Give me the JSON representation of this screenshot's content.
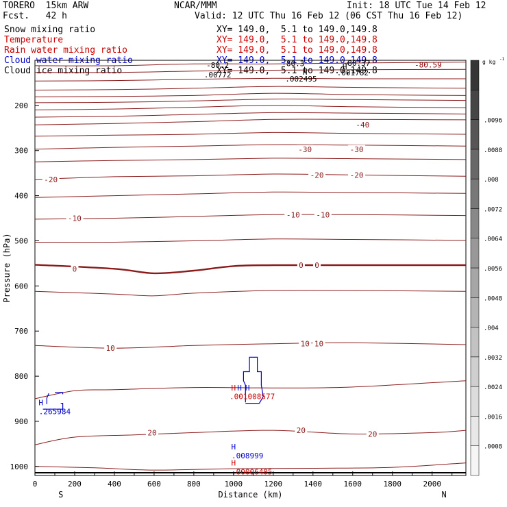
{
  "header": {
    "model": "TORERO  15km ARW",
    "org": "NCAR/MMM",
    "init": "Init: 18 UTC Tue 14 Feb 12",
    "fcst": "Fcst.   42 h",
    "valid": "Valid: 12 UTC Thu 16 Feb 12 (06 CST Thu 16 Feb 12)"
  },
  "legend": [
    {
      "label": "Snow mixing ratio",
      "xy": "XY= 149.0,  5.1 to 149.0,149.8",
      "color": "#000000"
    },
    {
      "label": "Temperature",
      "xy": "XY= 149.0,  5.1 to 149.0,149.8",
      "color": "#cc0000"
    },
    {
      "label": "Rain water mixing ratio",
      "xy": "XY= 149.0,  5.1 to 149.0,149.8",
      "color": "#cc0000"
    },
    {
      "label": "Cloud water mixing ratio",
      "xy": "XY= 149.0,  5.1 to 149.0,149.8",
      "color": "#0000cc"
    },
    {
      "label": "Cloud ice mixing ratio",
      "xy": "XY= 149.0,  5.1 to 149.0,149.8",
      "color": "#000000"
    }
  ],
  "chart_data": {
    "type": "contour-cross-section",
    "xlabel": "Distance (km)",
    "ylabel": "Pressure (hPa)",
    "xlim": [
      0,
      2170
    ],
    "ylim": [
      100,
      1020
    ],
    "x_ticks": [
      0,
      200,
      400,
      600,
      800,
      1000,
      1200,
      1400,
      1600,
      1800,
      2000
    ],
    "y_ticks": [
      200,
      300,
      400,
      500,
      600,
      700,
      800,
      900,
      1000
    ],
    "left_end": "S",
    "right_end": "N",
    "temperature_contours": [
      {
        "value": -80,
        "points": [
          [
            0,
            112
          ],
          [
            400,
            112
          ],
          [
            800,
            108
          ],
          [
            1200,
            108
          ],
          [
            1600,
            106
          ],
          [
            2170,
            104
          ]
        ]
      },
      {
        "value": -75,
        "points": [
          [
            0,
            127
          ],
          [
            400,
            127
          ],
          [
            800,
            124
          ],
          [
            1200,
            122
          ],
          [
            1600,
            121
          ],
          [
            2170,
            120
          ]
        ]
      },
      {
        "value": -70,
        "points": [
          [
            0,
            146
          ],
          [
            400,
            145
          ],
          [
            800,
            142
          ],
          [
            1200,
            140
          ],
          [
            1600,
            141
          ],
          [
            2170,
            141
          ]
        ]
      },
      {
        "value": -65,
        "points": [
          [
            0,
            166
          ],
          [
            400,
            165
          ],
          [
            800,
            162
          ],
          [
            1200,
            158
          ],
          [
            1600,
            160
          ],
          [
            2170,
            162
          ]
        ]
      },
      {
        "value": -60,
        "points": [
          [
            0,
            181
          ],
          [
            400,
            180
          ],
          [
            800,
            178
          ],
          [
            1200,
            173
          ],
          [
            1600,
            176
          ],
          [
            2170,
            178
          ]
        ]
      },
      {
        "value": -55,
        "points": [
          [
            0,
            194
          ],
          [
            400,
            193
          ],
          [
            800,
            190
          ],
          [
            1200,
            186
          ],
          [
            1600,
            187
          ],
          [
            2170,
            189
          ]
        ]
      },
      {
        "value": -50,
        "points": [
          [
            0,
            210
          ],
          [
            400,
            208
          ],
          [
            800,
            204
          ],
          [
            1200,
            200
          ],
          [
            1600,
            203
          ],
          [
            2170,
            205
          ]
        ]
      },
      {
        "value": -45,
        "points": [
          [
            0,
            226
          ],
          [
            400,
            224
          ],
          [
            800,
            220
          ],
          [
            1200,
            216
          ],
          [
            1600,
            217
          ],
          [
            2170,
            219
          ]
        ]
      },
      {
        "value": -40,
        "points": [
          [
            0,
            243
          ],
          [
            400,
            240
          ],
          [
            800,
            236
          ],
          [
            1200,
            231
          ],
          [
            1600,
            231
          ],
          [
            2170,
            232
          ]
        ]
      },
      {
        "value": -35,
        "points": [
          [
            0,
            268
          ],
          [
            400,
            266
          ],
          [
            800,
            264
          ],
          [
            1200,
            260
          ],
          [
            1600,
            262
          ],
          [
            2170,
            264
          ]
        ]
      },
      {
        "value": -30,
        "points": [
          [
            0,
            297
          ],
          [
            400,
            293
          ],
          [
            800,
            290
          ],
          [
            1200,
            287
          ],
          [
            1600,
            288
          ],
          [
            2170,
            290
          ]
        ]
      },
      {
        "value": -25,
        "points": [
          [
            0,
            325
          ],
          [
            400,
            322
          ],
          [
            800,
            320
          ],
          [
            1200,
            317
          ],
          [
            1600,
            318
          ],
          [
            2170,
            320
          ]
        ]
      },
      {
        "value": -20,
        "points": [
          [
            0,
            364
          ],
          [
            400,
            358
          ],
          [
            800,
            356
          ],
          [
            1200,
            352
          ],
          [
            1600,
            354
          ],
          [
            2170,
            357
          ]
        ]
      },
      {
        "value": -15,
        "points": [
          [
            0,
            404
          ],
          [
            400,
            400
          ],
          [
            800,
            396
          ],
          [
            1200,
            392
          ],
          [
            1600,
            393
          ],
          [
            2170,
            395
          ]
        ]
      },
      {
        "value": -10,
        "points": [
          [
            0,
            452
          ],
          [
            400,
            450
          ],
          [
            800,
            446
          ],
          [
            1200,
            442
          ],
          [
            1600,
            442
          ],
          [
            2170,
            444
          ]
        ]
      },
      {
        "value": -5,
        "points": [
          [
            0,
            503
          ],
          [
            400,
            503
          ],
          [
            800,
            500
          ],
          [
            1200,
            496
          ],
          [
            1600,
            497
          ],
          [
            2170,
            499
          ]
        ]
      },
      {
        "value": 0,
        "points": [
          [
            0,
            553
          ],
          [
            400,
            562
          ],
          [
            600,
            572
          ],
          [
            800,
            566
          ],
          [
            1000,
            556
          ],
          [
            1200,
            554
          ],
          [
            1600,
            554
          ],
          [
            2170,
            554
          ]
        ]
      },
      {
        "value": 5,
        "points": [
          [
            0,
            612
          ],
          [
            400,
            618
          ],
          [
            600,
            622
          ],
          [
            800,
            616
          ],
          [
            1200,
            610
          ],
          [
            1600,
            610
          ],
          [
            2170,
            612
          ]
        ]
      },
      {
        "value": 10,
        "points": [
          [
            0,
            732
          ],
          [
            400,
            738
          ],
          [
            800,
            732
          ],
          [
            1200,
            728
          ],
          [
            1600,
            726
          ],
          [
            2170,
            730
          ]
        ]
      },
      {
        "value": 15,
        "points": [
          [
            0,
            850
          ],
          [
            200,
            832
          ],
          [
            400,
            830
          ],
          [
            800,
            825
          ],
          [
            1200,
            826
          ],
          [
            1600,
            824
          ],
          [
            2170,
            810
          ]
        ]
      },
      {
        "value": 20,
        "points": [
          [
            0,
            952
          ],
          [
            200,
            935
          ],
          [
            500,
            930
          ],
          [
            800,
            925
          ],
          [
            1200,
            920
          ],
          [
            1600,
            928
          ],
          [
            2000,
            925
          ],
          [
            2170,
            920
          ]
        ]
      },
      {
        "value": 25,
        "points": [
          [
            0,
            1000
          ],
          [
            300,
            1003
          ],
          [
            600,
            1008
          ],
          [
            1000,
            1005
          ],
          [
            1400,
            1004
          ],
          [
            1800,
            1002
          ],
          [
            2170,
            992
          ]
        ]
      }
    ],
    "temperature_labels": [
      {
        "x": 1650,
        "p": 243,
        "text": "-40"
      },
      {
        "x": 1360,
        "p": 297,
        "text": "-30"
      },
      {
        "x": 1620,
        "p": 297,
        "text": "-30"
      },
      {
        "x": 80,
        "p": 364,
        "text": "-20"
      },
      {
        "x": 1420,
        "p": 354,
        "text": "-20"
      },
      {
        "x": 1620,
        "p": 354,
        "text": "-20"
      },
      {
        "x": 200,
        "p": 450,
        "text": "-10"
      },
      {
        "x": 1300,
        "p": 442,
        "text": "-10"
      },
      {
        "x": 1450,
        "p": 442,
        "text": "-10"
      },
      {
        "x": 200,
        "p": 562,
        "text": "0"
      },
      {
        "x": 1340,
        "p": 554,
        "text": "0"
      },
      {
        "x": 1420,
        "p": 554,
        "text": "0"
      },
      {
        "x": 380,
        "p": 738,
        "text": "10"
      },
      {
        "x": 1360,
        "p": 728,
        "text": "10"
      },
      {
        "x": 1430,
        "p": 728,
        "text": "10"
      },
      {
        "x": 590,
        "p": 925,
        "text": "20"
      },
      {
        "x": 1340,
        "p": 920,
        "text": "20"
      },
      {
        "x": 1700,
        "p": 928,
        "text": "20"
      }
    ],
    "top_labels": [
      {
        "x": 920,
        "p": 111,
        "text": "-80.2",
        "color": "#000000"
      },
      {
        "x": 1300,
        "p": 107,
        "text": "-80.3",
        "color": "#000000"
      },
      {
        "x": 1620,
        "p": 106,
        "text": "-80.37",
        "color": "#000000"
      },
      {
        "x": 1980,
        "p": 110,
        "text": "-80.59",
        "color": "#8b0000"
      },
      {
        "x": 920,
        "p": 132,
        "text": ".00772",
        "color": "#000000"
      },
      {
        "x": 1340,
        "p": 141,
        "text": ".002495",
        "color": "#000000"
      },
      {
        "x": 1600,
        "p": 127,
        "text": ".001782",
        "color": "#000000"
      }
    ],
    "highs": [
      {
        "x": 1360,
        "p": 126,
        "text": "H",
        "color": "#000000"
      },
      {
        "x": 1560,
        "p": 114,
        "text": "H",
        "color": "#000000"
      },
      {
        "x": 1000,
        "p": 826,
        "text": "H",
        "color": "#cc0000"
      },
      {
        "x": 1030,
        "p": 826,
        "text": "H",
        "color": "#0000cc"
      },
      {
        "x": 1070,
        "p": 826,
        "text": "H",
        "color": "#0000cc"
      },
      {
        "x": 30,
        "p": 858,
        "text": "H",
        "color": "#0000cc"
      },
      {
        "x": 1000,
        "p": 956,
        "text": "H",
        "color": "#0000cc"
      },
      {
        "x": 1000,
        "p": 992,
        "text": "H",
        "color": "#cc0000"
      }
    ],
    "value_labels": [
      {
        "x": 980,
        "p": 845,
        "text": ".001008577",
        "color": "#cc0000"
      },
      {
        "x": 20,
        "p": 878,
        "text": ".265984",
        "color": "#0000cc"
      },
      {
        "x": 990,
        "p": 976,
        "text": ".008999",
        "color": "#0000cc"
      },
      {
        "x": 990,
        "p": 1012,
        "text": ".00006405",
        "color": "#cc0000"
      }
    ],
    "cloud_water_contours": [
      {
        "points": [
          [
            40,
            873
          ],
          [
            140,
            873
          ],
          [
            140,
            860
          ],
          [
            130,
            860
          ]
        ]
      },
      {
        "points": [
          [
            70,
            838
          ],
          [
            60,
            848
          ],
          [
            60,
            862
          ]
        ]
      },
      {
        "points": [
          [
            100,
            836
          ],
          [
            140,
            836
          ],
          [
            140,
            840
          ]
        ]
      },
      {
        "points": [
          [
            1060,
            858
          ],
          [
            1060,
            820
          ],
          [
            1050,
            810
          ],
          [
            1050,
            790
          ],
          [
            1080,
            790
          ],
          [
            1080,
            758
          ],
          [
            1120,
            758
          ],
          [
            1120,
            790
          ],
          [
            1140,
            790
          ],
          [
            1140,
            820
          ],
          [
            1150,
            845
          ],
          [
            1130,
            860
          ],
          [
            1060,
            860
          ]
        ]
      }
    ],
    "colorbar": {
      "unit": "g kg",
      "unit_exp": "-1",
      "tick_labels": [
        ".0096",
        ".0088",
        ".008",
        ".0072",
        ".0064",
        ".0056",
        ".0048",
        ".004",
        ".0032",
        ".0024",
        ".0016",
        ".0008"
      ],
      "shades": [
        "#f5f5f5",
        "#e8e8e8",
        "#dcdcdc",
        "#cfcfcf",
        "#c2c2c2",
        "#b4b4b4",
        "#a6a6a6",
        "#989898",
        "#888888",
        "#787878",
        "#686868",
        "#565656",
        "#464646",
        "#363636"
      ]
    },
    "colors": {
      "temperature": "#8b1a1a",
      "cloud_water": "#0000cc",
      "surface": "#000000"
    }
  }
}
